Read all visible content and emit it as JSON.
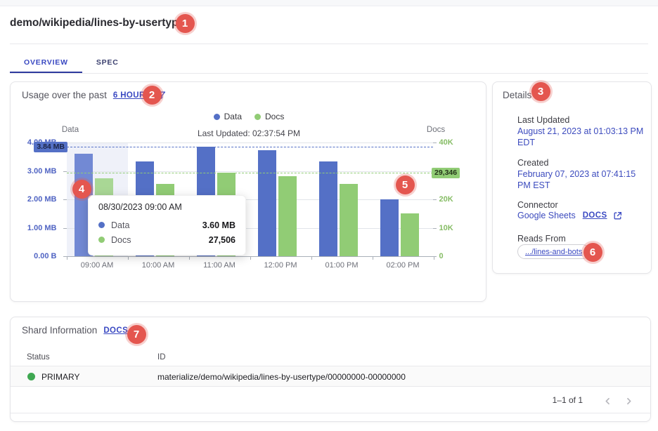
{
  "page": {
    "title": "demo/wikipedia/lines-by-usertype",
    "tabs": [
      {
        "label": "OVERVIEW",
        "active": true
      },
      {
        "label": "SPEC",
        "active": false
      }
    ]
  },
  "colors": {
    "accent_indigo": "#3a49c2",
    "data_blue": "#5470c6",
    "docs_green": "#91cc75",
    "annotation_badge_red": "#e4564f",
    "status_primary_green": "#3fa852"
  },
  "annotation_badges": [
    "1",
    "2",
    "3",
    "4",
    "5",
    "6",
    "7"
  ],
  "usage_card": {
    "heading": "Usage over the past",
    "range_link": "6 HOURS",
    "last_updated": "Last Updated: 02:37:54 PM"
  },
  "chart_data": {
    "type": "bar",
    "title": "Usage over the past 6 HOURS",
    "categories": [
      "09:00 AM",
      "10:00 AM",
      "11:00 AM",
      "12:00 PM",
      "01:00 PM",
      "02:00 PM"
    ],
    "series": [
      {
        "name": "Data",
        "yaxis": "left",
        "unit": "MB",
        "color": "#5470c6",
        "highlight_color": "#7289d4",
        "values": [
          3.6,
          3.34,
          3.84,
          3.72,
          3.33,
          2.01
        ],
        "max_marker": {
          "label": "3.84 MB",
          "value": 3.84
        }
      },
      {
        "name": "Docs",
        "yaxis": "right",
        "color": "#91cc75",
        "highlight_color": "#a9d795",
        "values": [
          27506,
          25500,
          29346,
          28100,
          25400,
          15100
        ],
        "max_marker": {
          "label": "29,346",
          "value": 29346
        }
      }
    ],
    "left_axis": {
      "name": "Data",
      "tick_labels": [
        "4.00 MB",
        "3.00 MB",
        "2.00 MB",
        "1.00 MB",
        "0.00 B"
      ],
      "max": 4.0,
      "min": 0
    },
    "right_axis": {
      "name": "Docs",
      "tick_labels": [
        "40K",
        "30K",
        "20K",
        "10K",
        "0"
      ],
      "max": 40000,
      "min": 0
    },
    "legend_position": "top-center",
    "grid": true,
    "highlighted_category": 0,
    "tooltip": {
      "title": "08/30/2023 09:00 AM",
      "rows": [
        {
          "label": "Data",
          "value": "3.60 MB",
          "color": "#5470c6"
        },
        {
          "label": "Docs",
          "value": "27,506",
          "color": "#91cc75"
        }
      ]
    }
  },
  "details_card": {
    "heading": "Details",
    "fields": [
      {
        "label": "Last Updated",
        "value": "August 21, 2023 at 01:03:13 PM EDT"
      },
      {
        "label": "Created",
        "value": "February 07, 2023 at 07:41:15 PM EST"
      }
    ],
    "connector": {
      "label": "Connector",
      "name": "Google Sheets",
      "docs_label": "DOCS"
    },
    "reads_from": {
      "label": "Reads From",
      "chip": ".../lines-and-bots"
    }
  },
  "shard_card": {
    "heading": "Shard Information",
    "docs_label": "DOCS",
    "table": {
      "columns": [
        "Status",
        "ID"
      ],
      "rows": [
        {
          "status": "PRIMARY",
          "status_color": "#3fa852",
          "id": "materialize/demo/wikipedia/lines-by-usertype/00000000-00000000"
        }
      ]
    },
    "pagination": "1–1 of 1"
  }
}
